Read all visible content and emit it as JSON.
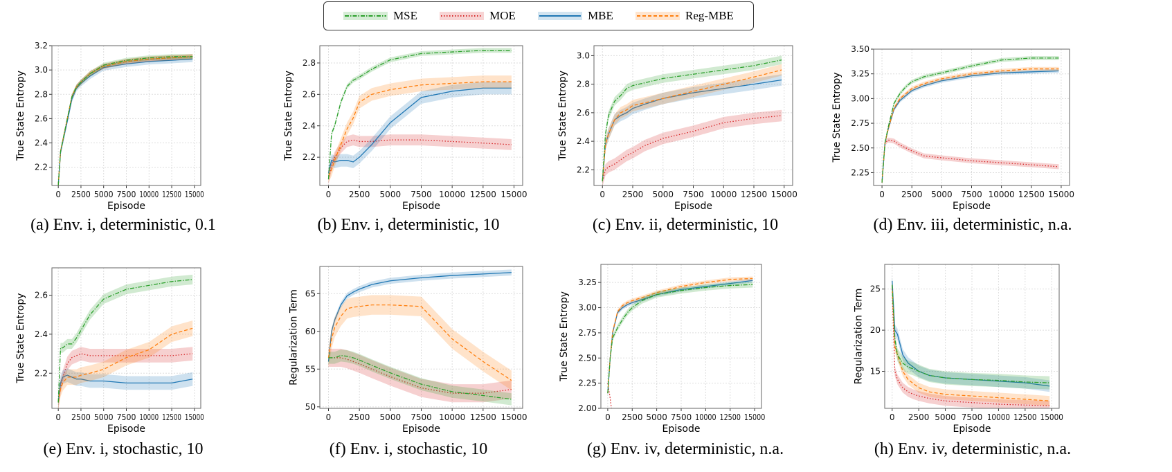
{
  "legend": [
    {
      "name": "MSE",
      "color": "#2ca02c",
      "style": "dashdot"
    },
    {
      "name": "MOE",
      "color": "#d62728",
      "style": "dotted"
    },
    {
      "name": "MBE",
      "color": "#1f77b4",
      "style": "solid"
    },
    {
      "name": "Reg-MBE",
      "color": "#ff7f0e",
      "style": "dashed"
    }
  ],
  "chart_data": [
    {
      "type": "line",
      "caption": "(a) Env. i, deterministic, 0.1",
      "xlabel": "Episode",
      "ylabel": "True State Entropy",
      "xlim": [
        -700,
        15700
      ],
      "ylim": [
        2.05,
        3.2
      ],
      "x_ticks": [
        0,
        2500,
        5000,
        7500,
        10000,
        12500,
        15000
      ],
      "y_ticks": [
        2.2,
        2.4,
        2.6,
        2.8,
        3.0,
        3.2
      ],
      "grid": true,
      "x": [
        0,
        250,
        500,
        1000,
        1500,
        2000,
        2500,
        3500,
        5000,
        7500,
        10000,
        12500,
        14800
      ],
      "series": [
        {
          "name": "MSE",
          "values": [
            2.05,
            2.33,
            2.42,
            2.6,
            2.78,
            2.86,
            2.9,
            2.97,
            3.04,
            3.08,
            3.1,
            3.11,
            3.11
          ],
          "band": 0.02
        },
        {
          "name": "MOE",
          "values": [
            2.05,
            2.33,
            2.42,
            2.6,
            2.78,
            2.86,
            2.9,
            2.97,
            3.03,
            3.07,
            3.09,
            3.1,
            3.11
          ],
          "band": 0.02
        },
        {
          "name": "MBE",
          "values": [
            2.05,
            2.32,
            2.41,
            2.58,
            2.76,
            2.85,
            2.89,
            2.95,
            3.02,
            3.05,
            3.07,
            3.08,
            3.09
          ],
          "band": 0.025
        },
        {
          "name": "Reg-MBE",
          "values": [
            2.05,
            2.33,
            2.42,
            2.6,
            2.78,
            2.86,
            2.9,
            2.97,
            3.03,
            3.07,
            3.09,
            3.1,
            3.11
          ],
          "band": 0.02
        }
      ]
    },
    {
      "type": "line",
      "caption": "(b) Env. i, deterministic, 10",
      "xlabel": "Episode",
      "ylabel": "True State Entropy",
      "xlim": [
        -700,
        15700
      ],
      "ylim": [
        2.02,
        2.91
      ],
      "x_ticks": [
        0,
        2500,
        5000,
        7500,
        10000,
        12500,
        15000
      ],
      "y_ticks": [
        2.2,
        2.4,
        2.6,
        2.8
      ],
      "grid": true,
      "x": [
        0,
        250,
        500,
        1000,
        1500,
        2000,
        2500,
        3500,
        5000,
        7500,
        10000,
        12500,
        14800
      ],
      "series": [
        {
          "name": "MSE",
          "values": [
            2.06,
            2.35,
            2.4,
            2.55,
            2.65,
            2.69,
            2.71,
            2.76,
            2.82,
            2.86,
            2.87,
            2.88,
            2.88
          ],
          "band": 0.015
        },
        {
          "name": "MOE",
          "values": [
            2.06,
            2.15,
            2.2,
            2.26,
            2.3,
            2.31,
            2.3,
            2.3,
            2.31,
            2.31,
            2.3,
            2.29,
            2.28
          ],
          "band": 0.035
        },
        {
          "name": "MBE",
          "values": [
            2.1,
            2.18,
            2.17,
            2.18,
            2.18,
            2.17,
            2.2,
            2.28,
            2.42,
            2.58,
            2.62,
            2.64,
            2.64
          ],
          "band": 0.04
        },
        {
          "name": "Reg-MBE",
          "values": [
            2.08,
            2.12,
            2.18,
            2.28,
            2.38,
            2.45,
            2.55,
            2.6,
            2.63,
            2.66,
            2.67,
            2.68,
            2.68
          ],
          "band": 0.04
        }
      ]
    },
    {
      "type": "line",
      "caption": "(c) Env. ii, deterministic, 10",
      "xlabel": "Episode",
      "ylabel": "True State Entropy",
      "xlim": [
        -700,
        15700
      ],
      "ylim": [
        2.09,
        3.07
      ],
      "x_ticks": [
        0,
        2500,
        5000,
        7500,
        10000,
        12500,
        15000
      ],
      "y_ticks": [
        2.2,
        2.4,
        2.6,
        2.8,
        3.0
      ],
      "grid": true,
      "x": [
        0,
        250,
        500,
        1000,
        1500,
        2000,
        2500,
        3500,
        5000,
        7500,
        10000,
        12500,
        14800
      ],
      "series": [
        {
          "name": "MSE",
          "values": [
            2.12,
            2.45,
            2.58,
            2.68,
            2.72,
            2.77,
            2.79,
            2.81,
            2.84,
            2.87,
            2.9,
            2.93,
            2.97
          ],
          "band": 0.03
        },
        {
          "name": "MOE",
          "values": [
            2.12,
            2.2,
            2.22,
            2.24,
            2.27,
            2.3,
            2.32,
            2.37,
            2.42,
            2.47,
            2.53,
            2.56,
            2.58
          ],
          "band": 0.04
        },
        {
          "name": "MBE",
          "values": [
            2.12,
            2.38,
            2.45,
            2.55,
            2.58,
            2.6,
            2.63,
            2.66,
            2.7,
            2.74,
            2.77,
            2.8,
            2.83
          ],
          "band": 0.04
        },
        {
          "name": "Reg-MBE",
          "values": [
            2.12,
            2.38,
            2.45,
            2.55,
            2.6,
            2.62,
            2.65,
            2.67,
            2.7,
            2.75,
            2.8,
            2.85,
            2.9
          ],
          "band": 0.04
        }
      ]
    },
    {
      "type": "line",
      "caption": "(d) Env. iii, deterministic, n.a.",
      "xlabel": "Episode",
      "ylabel": "True State Entropy",
      "xlim": [
        -700,
        15700
      ],
      "ylim": [
        2.12,
        3.5
      ],
      "x_ticks": [
        0,
        2500,
        5000,
        7500,
        10000,
        12500,
        15000
      ],
      "y_ticks": [
        2.25,
        2.5,
        2.75,
        3.0,
        3.25,
        3.5
      ],
      "grid": true,
      "x": [
        0,
        250,
        500,
        1000,
        1500,
        2000,
        2500,
        3500,
        5000,
        7500,
        10000,
        12500,
        14800
      ],
      "series": [
        {
          "name": "MSE",
          "values": [
            2.15,
            2.55,
            2.7,
            2.95,
            3.05,
            3.12,
            3.17,
            3.22,
            3.26,
            3.33,
            3.39,
            3.41,
            3.41
          ],
          "band": 0.02
        },
        {
          "name": "MOE",
          "values": [
            2.15,
            2.55,
            2.58,
            2.57,
            2.53,
            2.5,
            2.47,
            2.42,
            2.4,
            2.37,
            2.35,
            2.33,
            2.31
          ],
          "band": 0.025
        },
        {
          "name": "MBE",
          "values": [
            2.15,
            2.55,
            2.68,
            2.89,
            2.98,
            3.03,
            3.08,
            3.13,
            3.18,
            3.23,
            3.26,
            3.27,
            3.28
          ],
          "band": 0.02
        },
        {
          "name": "Reg-MBE",
          "values": [
            2.15,
            2.55,
            2.68,
            2.9,
            3.0,
            3.05,
            3.1,
            3.15,
            3.2,
            3.25,
            3.28,
            3.3,
            3.3
          ],
          "band": 0.02
        }
      ]
    },
    {
      "type": "line",
      "caption": "(e) Env. i, stochastic, 10",
      "xlabel": "Episode",
      "ylabel": "True State Entropy",
      "xlim": [
        -700,
        15700
      ],
      "ylim": [
        2.02,
        2.74
      ],
      "x_ticks": [
        0,
        2500,
        5000,
        7500,
        10000,
        12500,
        15000
      ],
      "y_ticks": [
        2.2,
        2.4,
        2.6
      ],
      "grid": true,
      "x": [
        0,
        250,
        500,
        1000,
        1500,
        2000,
        2500,
        3500,
        5000,
        7500,
        10000,
        12500,
        14800
      ],
      "series": [
        {
          "name": "MSE",
          "values": [
            2.05,
            2.33,
            2.33,
            2.35,
            2.35,
            2.38,
            2.42,
            2.5,
            2.58,
            2.63,
            2.65,
            2.67,
            2.68
          ],
          "band": 0.025
        },
        {
          "name": "MOE",
          "values": [
            2.05,
            2.13,
            2.18,
            2.25,
            2.28,
            2.29,
            2.3,
            2.29,
            2.29,
            2.29,
            2.29,
            2.29,
            2.3
          ],
          "band": 0.035
        },
        {
          "name": "MBE",
          "values": [
            2.05,
            2.15,
            2.18,
            2.19,
            2.18,
            2.17,
            2.17,
            2.16,
            2.16,
            2.15,
            2.15,
            2.15,
            2.17
          ],
          "band": 0.035
        },
        {
          "name": "Reg-MBE",
          "values": [
            2.05,
            2.12,
            2.15,
            2.18,
            2.18,
            2.18,
            2.19,
            2.2,
            2.22,
            2.28,
            2.32,
            2.4,
            2.43
          ],
          "band": 0.04
        }
      ]
    },
    {
      "type": "line",
      "caption": "(f) Env. i, stochastic, 10",
      "xlabel": "Episode",
      "ylabel": "Regularization Term",
      "xlim": [
        -700,
        15700
      ],
      "ylim": [
        49.8,
        68.6
      ],
      "x_ticks": [
        0,
        2500,
        5000,
        7500,
        10000,
        12500,
        15000
      ],
      "y_ticks": [
        50,
        55,
        60,
        65
      ],
      "grid": true,
      "x": [
        0,
        250,
        500,
        1000,
        1500,
        2000,
        2500,
        3500,
        5000,
        7500,
        10000,
        12500,
        14800
      ],
      "series": [
        {
          "name": "MSE",
          "values": [
            56.5,
            56.5,
            56.5,
            56.8,
            56.7,
            56.5,
            56.2,
            55.5,
            54.5,
            53,
            52,
            51.5,
            51
          ],
          "band": 0.8
        },
        {
          "name": "MOE",
          "values": [
            56.5,
            56.5,
            56.5,
            56.5,
            56.3,
            56,
            55.7,
            55,
            54,
            52.5,
            51.8,
            51.8,
            52.3
          ],
          "band": 1.2
        },
        {
          "name": "MBE",
          "values": [
            56,
            60,
            61.5,
            63.5,
            64.7,
            65.2,
            65.6,
            66.2,
            66.7,
            67.1,
            67.4,
            67.6,
            67.8
          ],
          "band": 0.4
        },
        {
          "name": "Reg-MBE",
          "values": [
            56.5,
            59,
            60.5,
            62,
            63,
            63.2,
            63.3,
            63.5,
            63.5,
            63.3,
            59,
            56,
            53.5
          ],
          "band": 1.3
        }
      ]
    },
    {
      "type": "line",
      "caption": "(g) Env. iv, deterministic, n.a.",
      "xlabel": "Episode",
      "ylabel": "True State Entropy",
      "xlim": [
        -700,
        15700
      ],
      "ylim": [
        2.0,
        3.43
      ],
      "x_ticks": [
        0,
        2500,
        5000,
        7500,
        10000,
        12500,
        15000
      ],
      "y_ticks": [
        2.0,
        2.25,
        2.5,
        2.75,
        3.0,
        3.25
      ],
      "grid": true,
      "x": [
        0,
        250,
        500,
        1000,
        1500,
        2000,
        2500,
        3500,
        5000,
        7500,
        10000,
        12500,
        14800
      ],
      "series": [
        {
          "name": "MSE",
          "values": [
            2.15,
            2.5,
            2.7,
            2.8,
            2.88,
            2.95,
            3.0,
            3.07,
            3.13,
            3.17,
            3.2,
            3.22,
            3.23
          ],
          "band": 0.03
        },
        {
          "name": "MOE",
          "values": [
            2.25,
            2.1,
            1.9,
            null,
            null,
            null,
            null,
            null,
            null,
            null,
            null,
            null,
            null
          ],
          "band": 0.01
        },
        {
          "name": "MBE",
          "values": [
            2.15,
            2.5,
            2.75,
            2.95,
            3.0,
            3.03,
            3.05,
            3.08,
            3.13,
            3.18,
            3.21,
            3.24,
            3.27
          ],
          "band": 0.02
        },
        {
          "name": "Reg-MBE",
          "values": [
            2.15,
            2.5,
            2.76,
            2.96,
            3.02,
            3.05,
            3.07,
            3.1,
            3.15,
            3.21,
            3.25,
            3.28,
            3.29
          ],
          "band": 0.02
        }
      ]
    },
    {
      "type": "line",
      "caption": "(h) Env. iv, deterministic, n.a.",
      "xlabel": "Episode",
      "ylabel": "Regularization Term",
      "xlim": [
        -700,
        15700
      ],
      "ylim": [
        10.5,
        28
      ],
      "x_ticks": [
        0,
        2500,
        5000,
        7500,
        10000,
        12500,
        15000
      ],
      "y_ticks": [
        15,
        20,
        25
      ],
      "grid": true,
      "x": [
        0,
        250,
        500,
        1000,
        1500,
        2000,
        2500,
        3500,
        5000,
        7500,
        10000,
        12500,
        14800
      ],
      "series": [
        {
          "name": "MSE",
          "values": [
            25.5,
            19,
            17,
            16,
            15.5,
            15.3,
            15,
            14.5,
            14.2,
            14,
            13.9,
            13.7,
            13.6
          ],
          "band": 0.8
        },
        {
          "name": "MOE",
          "values": [
            25,
            15,
            14,
            13,
            12.5,
            12.2,
            12,
            11.7,
            11.4,
            11.2,
            11,
            10.9,
            10.8
          ],
          "band": 0.6
        },
        {
          "name": "MBE",
          "values": [
            26,
            20,
            19.5,
            17,
            16,
            15.5,
            15,
            14.5,
            14.2,
            14,
            13.8,
            13.6,
            13.2
          ],
          "band": 0.7
        },
        {
          "name": "Reg-MBE",
          "values": [
            25.5,
            18,
            17,
            15,
            14,
            13.5,
            13,
            12.5,
            12.2,
            12,
            11.8,
            11.6,
            11.4
          ],
          "band": 0.6
        }
      ]
    }
  ]
}
